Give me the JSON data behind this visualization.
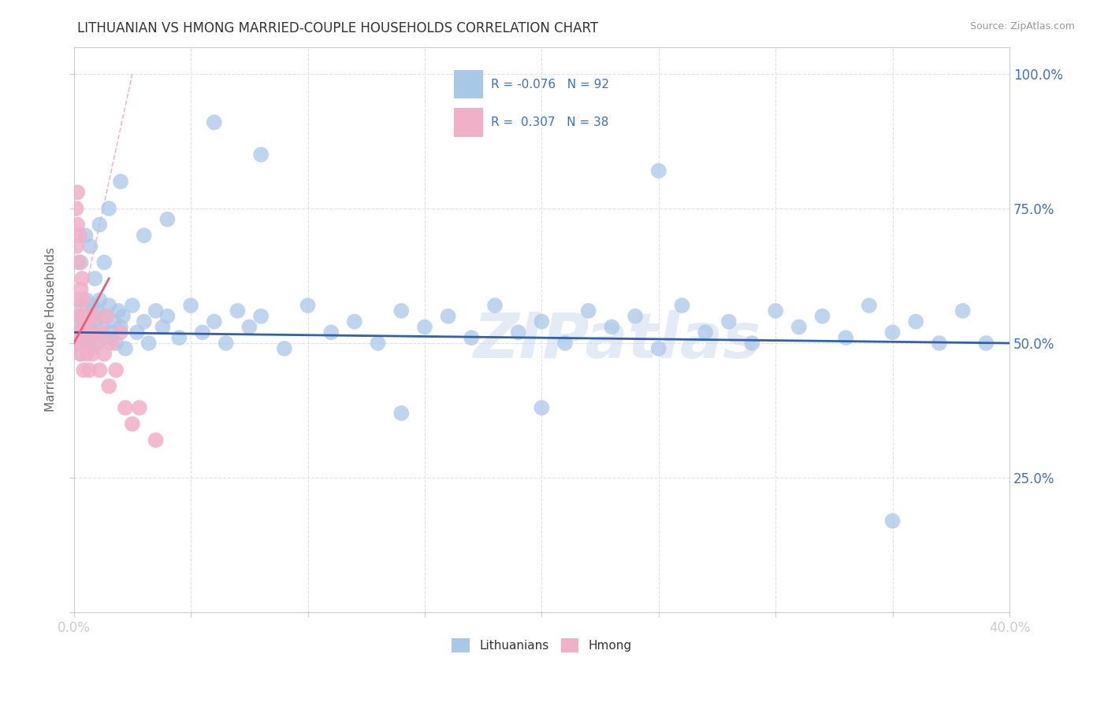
{
  "title": "LITHUANIAN VS HMONG MARRIED-COUPLE HOUSEHOLDS CORRELATION CHART",
  "source": "Source: ZipAtlas.com",
  "ylabel": "Married-couple Households",
  "watermark": "ZIPatlas",
  "blue_color": "#a8c8e8",
  "pink_color": "#f0b0c8",
  "blue_line_color": "#3060b0",
  "pink_line_color": "#e06080",
  "pink_diag_color": "#f0b0c8",
  "text_blue_color": "#4070c0",
  "title_color": "#333333",
  "source_color": "#999999",
  "grid_color": "#e0e0e0",
  "r_blue": -0.076,
  "n_blue": 92,
  "r_pink": 0.307,
  "n_pink": 38,
  "xlim": [
    0,
    40
  ],
  "ylim": [
    0,
    105
  ],
  "xticks": [
    0,
    5,
    10,
    15,
    20,
    25,
    30,
    35,
    40
  ],
  "xticklabels": [
    "0.0%",
    "",
    "",
    "",
    "",
    "",
    "",
    "",
    "40.0%"
  ],
  "yticks": [
    0,
    25,
    50,
    75,
    100
  ],
  "yticklabels": [
    "",
    "25.0%",
    "50.0%",
    "75.0%",
    "100.0%"
  ],
  "blue_x": [
    0.15,
    0.2,
    0.25,
    0.3,
    0.35,
    0.4,
    0.45,
    0.5,
    0.55,
    0.6,
    0.65,
    0.7,
    0.75,
    0.8,
    0.85,
    0.9,
    1.0,
    1.0,
    1.1,
    1.2,
    1.3,
    1.4,
    1.5,
    1.6,
    1.7,
    1.8,
    1.9,
    2.0,
    2.1,
    2.2,
    2.5,
    2.7,
    3.0,
    3.2,
    3.5,
    3.8,
    4.0,
    4.5,
    5.0,
    5.5,
    6.0,
    6.5,
    7.0,
    7.5,
    8.0,
    9.0,
    10.0,
    11.0,
    12.0,
    13.0,
    14.0,
    15.0,
    16.0,
    17.0,
    18.0,
    19.0,
    20.0,
    21.0,
    22.0,
    23.0,
    24.0,
    25.0,
    26.0,
    27.0,
    28.0,
    29.0,
    30.0,
    31.0,
    32.0,
    33.0,
    34.0,
    35.0,
    36.0,
    37.0,
    38.0,
    0.3,
    0.5,
    0.7,
    0.9,
    1.1,
    1.3,
    1.5,
    2.0,
    3.0,
    4.0,
    6.0,
    8.0,
    14.0,
    20.0,
    25.0,
    35.0,
    39.0
  ],
  "blue_y": [
    53,
    50,
    55,
    48,
    57,
    52,
    54,
    51,
    58,
    50,
    53,
    55,
    49,
    57,
    52,
    54,
    56,
    50,
    58,
    53,
    55,
    51,
    57,
    52,
    54,
    50,
    56,
    53,
    55,
    49,
    57,
    52,
    54,
    50,
    56,
    53,
    55,
    51,
    57,
    52,
    54,
    50,
    56,
    53,
    55,
    49,
    57,
    52,
    54,
    50,
    56,
    53,
    55,
    51,
    57,
    52,
    54,
    50,
    56,
    53,
    55,
    49,
    57,
    52,
    54,
    50,
    56,
    53,
    55,
    51,
    57,
    52,
    54,
    50,
    56,
    65,
    70,
    68,
    62,
    72,
    65,
    75,
    80,
    70,
    73,
    91,
    85,
    37,
    38,
    82,
    17,
    50
  ],
  "pink_x": [
    0.05,
    0.08,
    0.1,
    0.12,
    0.15,
    0.15,
    0.18,
    0.2,
    0.22,
    0.25,
    0.28,
    0.3,
    0.32,
    0.35,
    0.38,
    0.4,
    0.42,
    0.45,
    0.5,
    0.55,
    0.6,
    0.65,
    0.7,
    0.8,
    0.9,
    1.0,
    1.1,
    1.2,
    1.3,
    1.4,
    1.5,
    1.6,
    1.8,
    2.0,
    2.2,
    2.5,
    2.8,
    3.5
  ],
  "pink_y": [
    50,
    52,
    75,
    68,
    78,
    72,
    58,
    65,
    55,
    70,
    48,
    60,
    52,
    62,
    55,
    58,
    45,
    50,
    53,
    48,
    55,
    45,
    52,
    48,
    55,
    50,
    45,
    52,
    48,
    55,
    42,
    50,
    45,
    52,
    38,
    35,
    38,
    32
  ]
}
